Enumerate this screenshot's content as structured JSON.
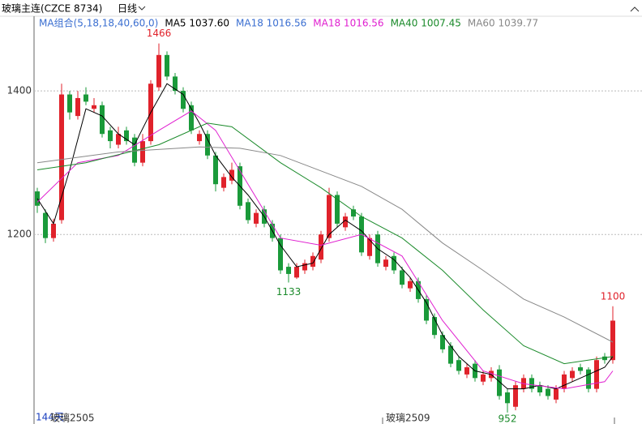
{
  "header": {
    "symbol": "玻璃主连(CZCE 8734)",
    "period": "日线"
  },
  "chart_data": {
    "type": "candlestick",
    "legend": [
      {
        "text": "MA组合(5,18,18,40,60,0)",
        "color": "#3b6fd1"
      },
      {
        "text": "MA5 1037.60",
        "color": "#000000"
      },
      {
        "text": "MA18 1016.56",
        "color": "#3b6fd1"
      },
      {
        "text": "MA18 1016.56",
        "color": "#e020d0"
      },
      {
        "text": "MA40 1007.45",
        "color": "#1a8a2a"
      },
      {
        "text": "MA60 1039.77",
        "color": "#888888"
      }
    ],
    "xlim": [
      -0.4,
      71.6
    ],
    "ylim": [
      936,
      1504
    ],
    "yticks": [
      1200,
      1400
    ],
    "grid": true,
    "up_color": "#e0222b",
    "down_color": "#1a9a3a",
    "open": [
      1260,
      1230,
      1195,
      1220,
      1395,
      1365,
      1395,
      1375,
      1380,
      1345,
      1325,
      1345,
      1335,
      1300,
      1330,
      1405,
      1450,
      1420,
      1400,
      1380,
      1330,
      1340,
      1310,
      1265,
      1275,
      1295,
      1245,
      1215,
      1235,
      1215,
      1195,
      1155,
      1140,
      1150,
      1155,
      1165,
      1195,
      1255,
      1210,
      1235,
      1225,
      1170,
      1200,
      1155,
      1170,
      1150,
      1125,
      1135,
      1110,
      1085,
      1060,
      1045,
      1025,
      1005,
      1020,
      995,
      1000,
      1012,
      980,
      960,
      985,
      1000,
      990,
      985,
      970,
      985,
      1000,
      1015,
      1012,
      985,
      1030,
      1025
    ],
    "high": [
      1265,
      1235,
      1222,
      1410,
      1400,
      1400,
      1405,
      1390,
      1385,
      1350,
      1350,
      1350,
      1340,
      1340,
      1415,
      1466,
      1455,
      1425,
      1405,
      1385,
      1345,
      1345,
      1315,
      1285,
      1300,
      1300,
      1250,
      1235,
      1240,
      1220,
      1200,
      1160,
      1160,
      1165,
      1175,
      1205,
      1265,
      1260,
      1230,
      1240,
      1230,
      1200,
      1205,
      1170,
      1175,
      1155,
      1140,
      1140,
      1115,
      1090,
      1065,
      1050,
      1030,
      1020,
      1025,
      1010,
      1015,
      1018,
      985,
      995,
      1005,
      1005,
      995,
      990,
      990,
      1010,
      1015,
      1020,
      1015,
      1030,
      1035,
      1100
    ],
    "low": [
      1230,
      1188,
      1190,
      1215,
      1360,
      1360,
      1380,
      1370,
      1335,
      1320,
      1320,
      1325,
      1295,
      1295,
      1325,
      1400,
      1415,
      1395,
      1370,
      1340,
      1325,
      1305,
      1260,
      1260,
      1270,
      1235,
      1215,
      1210,
      1210,
      1190,
      1145,
      1133,
      1138,
      1145,
      1150,
      1160,
      1190,
      1210,
      1205,
      1220,
      1170,
      1165,
      1155,
      1150,
      1145,
      1125,
      1120,
      1105,
      1075,
      1055,
      1035,
      1015,
      1005,
      1000,
      995,
      990,
      995,
      970,
      952,
      955,
      980,
      980,
      975,
      970,
      965,
      980,
      995,
      1005,
      980,
      980,
      1020,
      1020
    ],
    "close": [
      1240,
      1195,
      1215,
      1395,
      1370,
      1390,
      1385,
      1380,
      1340,
      1330,
      1340,
      1330,
      1300,
      1330,
      1410,
      1450,
      1420,
      1400,
      1375,
      1345,
      1340,
      1310,
      1270,
      1280,
      1290,
      1240,
      1220,
      1230,
      1215,
      1195,
      1150,
      1145,
      1155,
      1160,
      1170,
      1200,
      1255,
      1215,
      1225,
      1225,
      1175,
      1195,
      1160,
      1165,
      1150,
      1130,
      1135,
      1110,
      1080,
      1060,
      1040,
      1020,
      1010,
      1015,
      1000,
      1005,
      1010,
      975,
      965,
      990,
      1000,
      985,
      980,
      975,
      985,
      1005,
      1010,
      1010,
      985,
      1025,
      1025,
      1080
    ],
    "series": [
      {
        "color": "#000000",
        "x": [
          0,
          2,
          4,
          6,
          8,
          10,
          12,
          14,
          16,
          18,
          20,
          22,
          24,
          26,
          28,
          30,
          32,
          34,
          36,
          38,
          40,
          42,
          44,
          46,
          48,
          50,
          52,
          54,
          56,
          58,
          60,
          62,
          64,
          66,
          68,
          70,
          71
        ],
        "values": [
          1250,
          1215,
          1290,
          1375,
          1365,
          1340,
          1325,
          1370,
          1410,
          1395,
          1355,
          1310,
          1280,
          1255,
          1225,
          1185,
          1155,
          1160,
          1200,
          1220,
          1205,
          1180,
          1165,
          1140,
          1105,
          1060,
          1030,
          1010,
          1005,
          985,
          985,
          990,
          985,
          995,
          1005,
          1015,
          1030
        ]
      },
      {
        "color": "#e020d0",
        "x": [
          0,
          5,
          10,
          15,
          19,
          22,
          26,
          30,
          35,
          40,
          45,
          50,
          55,
          60,
          65,
          70,
          71
        ],
        "values": [
          1245,
          1300,
          1310,
          1345,
          1372,
          1345,
          1270,
          1195,
          1185,
          1200,
          1170,
          1080,
          1010,
          992,
          985,
          995,
          1010
        ]
      },
      {
        "color": "#1a8a2a",
        "x": [
          0,
          6,
          15,
          21,
          24,
          30,
          35,
          40,
          45,
          50,
          55,
          60,
          65,
          71
        ],
        "values": [
          1290,
          1300,
          1325,
          1355,
          1350,
          1300,
          1265,
          1225,
          1195,
          1150,
          1095,
          1045,
          1020,
          1030
        ]
      },
      {
        "color": "#888888",
        "x": [
          0,
          10,
          20,
          25,
          30,
          40,
          45,
          50,
          55,
          60,
          65,
          71
        ],
        "values": [
          1300,
          1315,
          1322,
          1320,
          1310,
          1267,
          1235,
          1188,
          1150,
          1110,
          1085,
          1050
        ]
      }
    ],
    "annotations": [
      {
        "x": 15,
        "value": 1466,
        "color": "#e0222b",
        "side": "above"
      },
      {
        "x": 31,
        "value": 1133,
        "color": "#1a8a2a",
        "side": "below"
      },
      {
        "x": 58,
        "value": 952,
        "color": "#1a8a2a",
        "side": "below"
      },
      {
        "x": 71,
        "value": 1100,
        "color": "#e0222b",
        "side": "above"
      }
    ]
  },
  "footer": {
    "days": "144天",
    "contract1": "玻璃2505",
    "contract2": "玻璃2509"
  }
}
